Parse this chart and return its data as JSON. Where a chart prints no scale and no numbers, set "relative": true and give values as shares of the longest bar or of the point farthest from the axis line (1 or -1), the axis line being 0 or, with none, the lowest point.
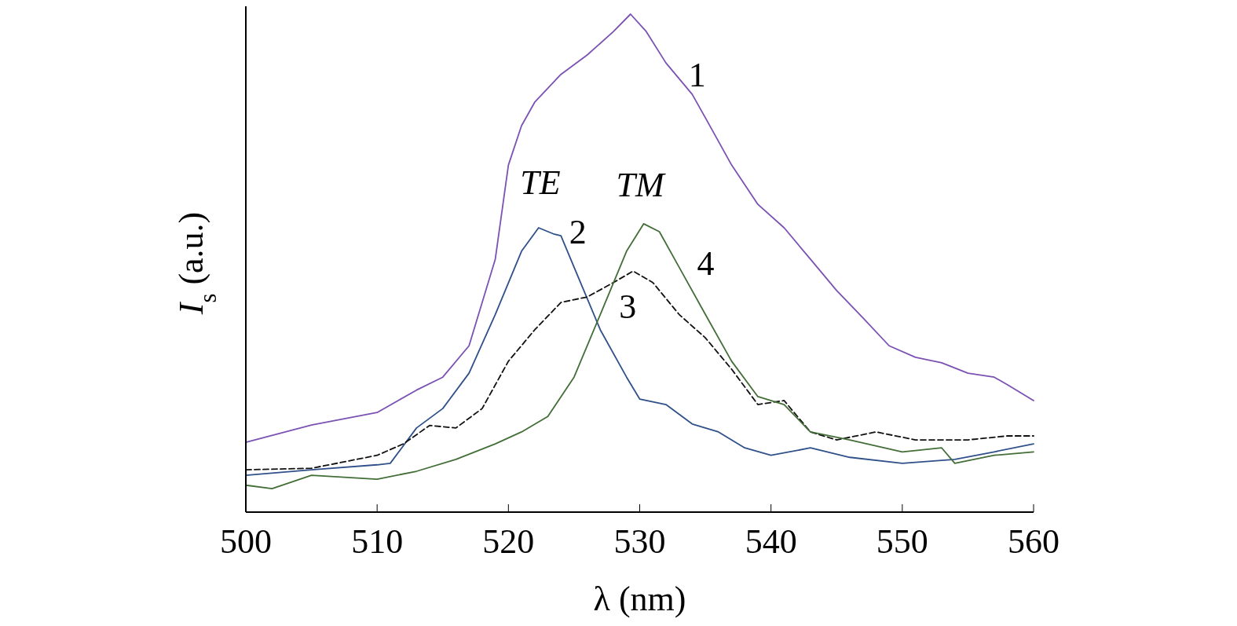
{
  "chart_data": {
    "type": "line",
    "relative": true,
    "xlabel": "λ (nm)",
    "ylabel": "I$_{s}$ (a.u.)",
    "xlim": [
      500,
      560
    ],
    "xticks": [
      500,
      510,
      520,
      530,
      540,
      550,
      560
    ],
    "series": [
      {
        "name": "1",
        "color": "#7b52b3",
        "line_style": "solid",
        "x": [
          500,
          505,
          510,
          513,
          515,
          517,
          519,
          520,
          521,
          522,
          524,
          526,
          528,
          529.3,
          530.5,
          532,
          534,
          535,
          537,
          539,
          541,
          543,
          545,
          547,
          549,
          551,
          553,
          555,
          557,
          558,
          560
        ],
        "values": [
          0.14,
          0.175,
          0.2,
          0.245,
          0.271,
          0.334,
          0.508,
          0.697,
          0.776,
          0.823,
          0.879,
          0.918,
          0.965,
          1.0,
          0.965,
          0.902,
          0.839,
          0.792,
          0.697,
          0.618,
          0.571,
          0.508,
          0.445,
          0.39,
          0.334,
          0.311,
          0.3,
          0.279,
          0.271,
          0.256,
          0.224
        ]
      },
      {
        "name": "2",
        "color": "#30508a",
        "line_style": "solid",
        "x": [
          500,
          505,
          510,
          511,
          513,
          515,
          517,
          519,
          521,
          522.3,
          523.5,
          524,
          525,
          527,
          529,
          530,
          532,
          534,
          536,
          538,
          540,
          543,
          546,
          550,
          554,
          557,
          560
        ],
        "values": [
          0.074,
          0.085,
          0.095,
          0.098,
          0.169,
          0.208,
          0.279,
          0.397,
          0.524,
          0.571,
          0.558,
          0.555,
          0.492,
          0.366,
          0.271,
          0.227,
          0.216,
          0.177,
          0.161,
          0.129,
          0.114,
          0.129,
          0.11,
          0.098,
          0.106,
          0.121,
          0.137
        ]
      },
      {
        "name": "3",
        "color": "#111111",
        "line_style": "dashed",
        "x": [
          500,
          505,
          510,
          512,
          514,
          516,
          518,
          520,
          522,
          524,
          526,
          528,
          529.5,
          531,
          533,
          535,
          537,
          539,
          541,
          543,
          545,
          548,
          551,
          555,
          558,
          560
        ],
        "values": [
          0.085,
          0.088,
          0.114,
          0.137,
          0.174,
          0.169,
          0.208,
          0.303,
          0.366,
          0.421,
          0.432,
          0.461,
          0.484,
          0.461,
          0.397,
          0.35,
          0.287,
          0.216,
          0.224,
          0.161,
          0.145,
          0.161,
          0.145,
          0.145,
          0.153,
          0.153
        ]
      },
      {
        "name": "4",
        "color": "#436e38",
        "line_style": "solid",
        "x": [
          500,
          502,
          505,
          510,
          513,
          516,
          519,
          521,
          523,
          525,
          527,
          529,
          530.3,
          531.5,
          533,
          535,
          537,
          539,
          541,
          543,
          546,
          550,
          553,
          554,
          557,
          560
        ],
        "values": [
          0.054,
          0.047,
          0.074,
          0.066,
          0.082,
          0.106,
          0.137,
          0.161,
          0.192,
          0.271,
          0.397,
          0.524,
          0.579,
          0.563,
          0.492,
          0.397,
          0.303,
          0.232,
          0.216,
          0.161,
          0.145,
          0.121,
          0.129,
          0.098,
          0.114,
          0.121
        ]
      }
    ],
    "annotations": [
      "TE",
      "TM"
    ]
  }
}
